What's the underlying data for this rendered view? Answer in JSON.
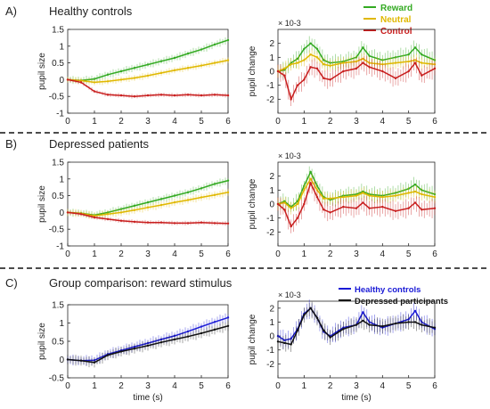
{
  "figure": {
    "panel_labels": [
      "A)",
      "B)",
      "C)"
    ],
    "panel_titles": [
      "Healthy controls",
      "Depressed patients",
      "Group comparison: reward stimulus"
    ],
    "legend_top": [
      {
        "label": "Reward",
        "color": "#33aa22"
      },
      {
        "label": "Neutral",
        "color": "#e0b800"
      },
      {
        "label": "Control",
        "color": "#c81e1e"
      }
    ],
    "legend_bottom": [
      {
        "label": "Healthy controls",
        "color": "#1a1ad6"
      },
      {
        "label": "Depressed participants",
        "color": "#111111"
      }
    ],
    "separators": "dashed",
    "colors": {
      "reward": "#33aa22",
      "neutral": "#e0b800",
      "control": "#c81e1e",
      "healthy": "#1a1ad6",
      "depressed": "#111111"
    }
  },
  "chart_data": [
    {
      "id": "A-left",
      "type": "line",
      "ylabel": "pupil size",
      "xlabel": "",
      "xlim": [
        0,
        6
      ],
      "ylim": [
        -1,
        1.5
      ],
      "xticks": [
        0,
        1,
        2,
        3,
        4,
        5,
        6
      ],
      "yticks": [
        -1,
        -0.5,
        0,
        0.5,
        1,
        1.5
      ],
      "x": [
        0,
        0.5,
        1,
        1.5,
        2,
        2.5,
        3,
        3.5,
        4,
        4.5,
        5,
        5.5,
        6
      ],
      "series": [
        {
          "name": "Reward",
          "color": "#33aa22",
          "values": [
            0,
            -0.02,
            0.02,
            0.15,
            0.25,
            0.35,
            0.45,
            0.55,
            0.65,
            0.78,
            0.9,
            1.05,
            1.18
          ],
          "err": 0.12
        },
        {
          "name": "Neutral",
          "color": "#e0b800",
          "values": [
            0,
            -0.03,
            -0.08,
            -0.05,
            0.0,
            0.05,
            0.12,
            0.2,
            0.28,
            0.35,
            0.42,
            0.5,
            0.58
          ],
          "err": 0.1
        },
        {
          "name": "Control",
          "color": "#c81e1e",
          "values": [
            0,
            -0.08,
            -0.35,
            -0.45,
            -0.47,
            -0.5,
            -0.47,
            -0.45,
            -0.47,
            -0.45,
            -0.47,
            -0.45,
            -0.47
          ],
          "err": 0.07
        }
      ]
    },
    {
      "id": "A-right",
      "type": "line",
      "ylabel": "pupil change",
      "xlabel": "",
      "exponent": "× 10-3",
      "xlim": [
        0,
        6
      ],
      "ylim": [
        -3,
        3
      ],
      "xticks": [
        0,
        1,
        2,
        3,
        4,
        5,
        6
      ],
      "yticks": [
        -2,
        -1,
        0,
        1,
        2
      ],
      "x": [
        0,
        0.25,
        0.5,
        0.75,
        1,
        1.25,
        1.5,
        1.75,
        2,
        2.5,
        3,
        3.25,
        3.5,
        4,
        4.5,
        5,
        5.25,
        5.5,
        6
      ],
      "series": [
        {
          "name": "Reward",
          "color": "#33aa22",
          "values": [
            0,
            0.1,
            0.6,
            0.9,
            1.6,
            2.0,
            1.6,
            0.8,
            0.6,
            0.7,
            1.0,
            1.7,
            1.1,
            0.8,
            1.0,
            1.2,
            1.7,
            1.2,
            0.8
          ],
          "err": 0.6
        },
        {
          "name": "Neutral",
          "color": "#e0b800",
          "values": [
            0,
            0.2,
            0.5,
            0.6,
            0.8,
            1.2,
            1.0,
            0.5,
            0.4,
            0.6,
            0.7,
            0.9,
            0.6,
            0.5,
            0.6,
            0.7,
            0.8,
            0.6,
            0.5
          ],
          "err": 0.5
        },
        {
          "name": "Control",
          "color": "#c81e1e",
          "values": [
            0,
            -0.3,
            -2.0,
            -1.0,
            -0.6,
            0.3,
            0.2,
            -0.5,
            -0.6,
            0.0,
            0.2,
            0.6,
            0.3,
            0.0,
            -0.5,
            0.0,
            0.6,
            -0.3,
            0.2
          ],
          "err": 0.7
        }
      ]
    },
    {
      "id": "B-left",
      "type": "line",
      "ylabel": "pupil size",
      "xlabel": "",
      "xlim": [
        0,
        6
      ],
      "ylim": [
        -1,
        1.5
      ],
      "xticks": [
        0,
        1,
        2,
        3,
        4,
        5,
        6
      ],
      "yticks": [
        -1,
        -0.5,
        0,
        0.5,
        1,
        1.5
      ],
      "x": [
        0,
        0.5,
        1,
        1.5,
        2,
        2.5,
        3,
        3.5,
        4,
        4.5,
        5,
        5.5,
        6
      ],
      "series": [
        {
          "name": "Reward",
          "color": "#33aa22",
          "values": [
            0,
            -0.02,
            -0.08,
            0.0,
            0.1,
            0.2,
            0.3,
            0.4,
            0.5,
            0.6,
            0.72,
            0.85,
            0.95
          ],
          "err": 0.12
        },
        {
          "name": "Neutral",
          "color": "#e0b800",
          "values": [
            0,
            -0.03,
            -0.1,
            -0.05,
            0.0,
            0.07,
            0.15,
            0.22,
            0.3,
            0.37,
            0.45,
            0.52,
            0.6
          ],
          "err": 0.12
        },
        {
          "name": "Control",
          "color": "#c81e1e",
          "values": [
            0,
            -0.05,
            -0.15,
            -0.2,
            -0.25,
            -0.28,
            -0.3,
            -0.3,
            -0.32,
            -0.32,
            -0.3,
            -0.32,
            -0.33
          ],
          "err": 0.07
        }
      ]
    },
    {
      "id": "B-right",
      "type": "line",
      "ylabel": "pupil change",
      "xlabel": "",
      "exponent": "× 10-3",
      "xlim": [
        0,
        6
      ],
      "ylim": [
        -3,
        3
      ],
      "xticks": [
        0,
        1,
        2,
        3,
        4,
        5,
        6
      ],
      "yticks": [
        -2,
        -1,
        0,
        1,
        2
      ],
      "x": [
        0,
        0.25,
        0.5,
        0.75,
        1,
        1.25,
        1.5,
        1.75,
        2,
        2.5,
        3,
        3.25,
        3.5,
        4,
        4.5,
        5,
        5.25,
        5.5,
        6
      ],
      "series": [
        {
          "name": "Reward",
          "color": "#33aa22",
          "values": [
            0,
            0.2,
            -0.2,
            0.2,
            1.3,
            2.3,
            1.3,
            0.5,
            0.3,
            0.6,
            0.7,
            0.9,
            0.7,
            0.6,
            0.8,
            1.1,
            1.4,
            1.0,
            0.7
          ],
          "err": 0.6
        },
        {
          "name": "Neutral",
          "color": "#e0b800",
          "values": [
            0,
            0.1,
            -0.3,
            0.0,
            1.0,
            1.8,
            1.0,
            0.4,
            0.4,
            0.5,
            0.6,
            0.8,
            0.6,
            0.5,
            0.6,
            0.8,
            0.9,
            0.7,
            0.5
          ],
          "err": 0.5
        },
        {
          "name": "Control",
          "color": "#c81e1e",
          "values": [
            0,
            -0.4,
            -1.6,
            -1.0,
            0.0,
            1.5,
            0.5,
            -0.4,
            -0.6,
            -0.2,
            -0.3,
            0.1,
            -0.3,
            -0.2,
            -0.5,
            -0.3,
            0.1,
            -0.4,
            -0.3
          ],
          "err": 0.7
        }
      ]
    },
    {
      "id": "C-left",
      "type": "line",
      "ylabel": "pupil size",
      "xlabel": "time (s)",
      "xlim": [
        0,
        6
      ],
      "ylim": [
        -0.5,
        1.5
      ],
      "xticks": [
        0,
        1,
        2,
        3,
        4,
        5,
        6
      ],
      "yticks": [
        -0.5,
        0,
        0.5,
        1,
        1.5
      ],
      "x": [
        0,
        0.5,
        1,
        1.5,
        2,
        2.5,
        3,
        3.5,
        4,
        4.5,
        5,
        5.5,
        6
      ],
      "series": [
        {
          "name": "Healthy controls",
          "color": "#1a1ad6",
          "values": [
            0,
            -0.03,
            -0.02,
            0.15,
            0.25,
            0.35,
            0.45,
            0.55,
            0.65,
            0.77,
            0.9,
            1.03,
            1.15
          ],
          "err": 0.15
        },
        {
          "name": "Depressed participants",
          "color": "#111111",
          "values": [
            0,
            -0.03,
            -0.08,
            0.12,
            0.22,
            0.3,
            0.38,
            0.47,
            0.55,
            0.63,
            0.72,
            0.82,
            0.92
          ],
          "err": 0.15
        }
      ]
    },
    {
      "id": "C-right",
      "type": "line",
      "ylabel": "pupil change",
      "xlabel": "time (s)",
      "exponent": "× 10-3",
      "xlim": [
        0,
        6
      ],
      "ylim": [
        -3,
        2.5
      ],
      "xticks": [
        0,
        1,
        2,
        3,
        4,
        5,
        6
      ],
      "yticks": [
        -2,
        -1,
        0,
        1,
        2
      ],
      "x": [
        0,
        0.25,
        0.5,
        0.75,
        1,
        1.25,
        1.5,
        1.75,
        2,
        2.5,
        3,
        3.25,
        3.5,
        4,
        4.5,
        5,
        5.25,
        5.5,
        6
      ],
      "series": [
        {
          "name": "Healthy controls",
          "color": "#1a1ad6",
          "values": [
            0,
            -0.3,
            -0.2,
            0.5,
            1.6,
            2.0,
            1.3,
            0.3,
            0.0,
            0.6,
            0.8,
            1.7,
            1.0,
            0.6,
            0.9,
            1.2,
            1.8,
            1.0,
            0.5
          ],
          "err": 0.7
        },
        {
          "name": "Depressed participants",
          "color": "#111111",
          "values": [
            -0.4,
            -0.5,
            -0.6,
            0.4,
            1.5,
            2.0,
            1.3,
            0.4,
            -0.1,
            0.5,
            0.8,
            1.1,
            0.8,
            0.7,
            0.9,
            1.0,
            1.0,
            0.8,
            0.6
          ],
          "err": 0.6
        }
      ]
    }
  ]
}
